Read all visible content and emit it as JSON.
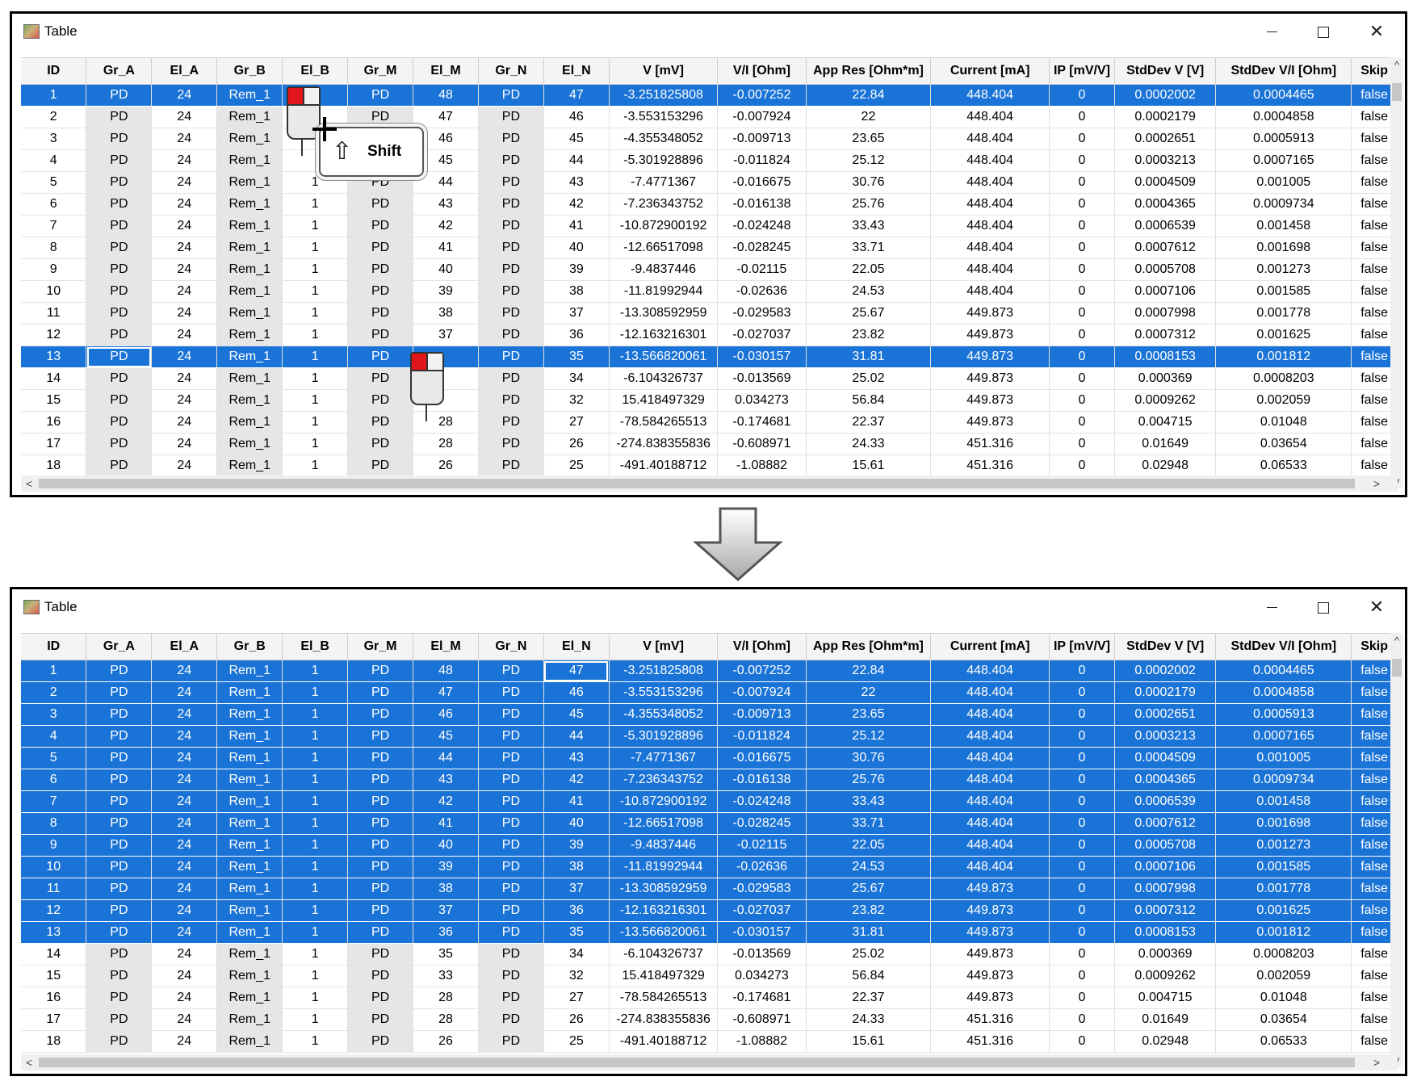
{
  "window_title": "Table",
  "window_controls": {
    "minimize": "—",
    "maximize": "□",
    "close": "✕"
  },
  "columns": [
    "ID",
    "Gr_A",
    "El_A",
    "Gr_B",
    "El_B",
    "Gr_M",
    "El_M",
    "Gr_N",
    "El_N",
    "V [mV]",
    "V/I [Ohm]",
    "App Res [Ohm*m]",
    "Current [mA]",
    "IP [mV/V]",
    "StdDev V [V]",
    "StdDev V/I [Ohm]",
    "Skip"
  ],
  "overlay": {
    "key_label": "Shift",
    "key_symbol": "⇧"
  },
  "scroll": {
    "up": "^",
    "down": "v",
    "left": "<",
    "right": ">"
  },
  "top_panel": {
    "selected_rows": [
      1,
      13
    ],
    "rows": [
      [
        "1",
        "PD",
        "24",
        "Rem_1",
        "",
        "PD",
        "48",
        "PD",
        "47",
        "-3.251825808",
        "-0.007252",
        "22.84",
        "448.404",
        "0",
        "0.0002002",
        "0.0004465",
        "false"
      ],
      [
        "2",
        "PD",
        "24",
        "Rem_1",
        "",
        "PD",
        "47",
        "PD",
        "46",
        "-3.553153296",
        "-0.007924",
        "22",
        "448.404",
        "0",
        "0.0002179",
        "0.0004858",
        "false"
      ],
      [
        "3",
        "PD",
        "24",
        "Rem_1",
        "",
        "PD",
        "46",
        "PD",
        "45",
        "-4.355348052",
        "-0.009713",
        "23.65",
        "448.404",
        "0",
        "0.0002651",
        "0.0005913",
        "false"
      ],
      [
        "4",
        "PD",
        "24",
        "Rem_1",
        "",
        "PD",
        "45",
        "PD",
        "44",
        "-5.301928896",
        "-0.011824",
        "25.12",
        "448.404",
        "0",
        "0.0003213",
        "0.0007165",
        "false"
      ],
      [
        "5",
        "PD",
        "24",
        "Rem_1",
        "1",
        "PD",
        "44",
        "PD",
        "43",
        "-7.4771367",
        "-0.016675",
        "30.76",
        "448.404",
        "0",
        "0.0004509",
        "0.001005",
        "false"
      ],
      [
        "6",
        "PD",
        "24",
        "Rem_1",
        "1",
        "PD",
        "43",
        "PD",
        "42",
        "-7.236343752",
        "-0.016138",
        "25.76",
        "448.404",
        "0",
        "0.0004365",
        "0.0009734",
        "false"
      ],
      [
        "7",
        "PD",
        "24",
        "Rem_1",
        "1",
        "PD",
        "42",
        "PD",
        "41",
        "-10.872900192",
        "-0.024248",
        "33.43",
        "448.404",
        "0",
        "0.0006539",
        "0.001458",
        "false"
      ],
      [
        "8",
        "PD",
        "24",
        "Rem_1",
        "1",
        "PD",
        "41",
        "PD",
        "40",
        "-12.66517098",
        "-0.028245",
        "33.71",
        "448.404",
        "0",
        "0.0007612",
        "0.001698",
        "false"
      ],
      [
        "9",
        "PD",
        "24",
        "Rem_1",
        "1",
        "PD",
        "40",
        "PD",
        "39",
        "-9.4837446",
        "-0.02115",
        "22.05",
        "448.404",
        "0",
        "0.0005708",
        "0.001273",
        "false"
      ],
      [
        "10",
        "PD",
        "24",
        "Rem_1",
        "1",
        "PD",
        "39",
        "PD",
        "38",
        "-11.81992944",
        "-0.02636",
        "24.53",
        "448.404",
        "0",
        "0.0007106",
        "0.001585",
        "false"
      ],
      [
        "11",
        "PD",
        "24",
        "Rem_1",
        "1",
        "PD",
        "38",
        "PD",
        "37",
        "-13.308592959",
        "-0.029583",
        "25.67",
        "449.873",
        "0",
        "0.0007998",
        "0.001778",
        "false"
      ],
      [
        "12",
        "PD",
        "24",
        "Rem_1",
        "1",
        "PD",
        "37",
        "PD",
        "36",
        "-12.163216301",
        "-0.027037",
        "23.82",
        "449.873",
        "0",
        "0.0007312",
        "0.001625",
        "false"
      ],
      [
        "13",
        "PD",
        "24",
        "Rem_1",
        "1",
        "PD",
        "",
        "PD",
        "35",
        "-13.566820061",
        "-0.030157",
        "31.81",
        "449.873",
        "0",
        "0.0008153",
        "0.001812",
        "false"
      ],
      [
        "14",
        "PD",
        "24",
        "Rem_1",
        "1",
        "PD",
        "",
        "PD",
        "34",
        "-6.104326737",
        "-0.013569",
        "25.02",
        "449.873",
        "0",
        "0.000369",
        "0.0008203",
        "false"
      ],
      [
        "15",
        "PD",
        "24",
        "Rem_1",
        "1",
        "PD",
        "",
        "PD",
        "32",
        "15.418497329",
        "0.034273",
        "56.84",
        "449.873",
        "0",
        "0.0009262",
        "0.002059",
        "false"
      ],
      [
        "16",
        "PD",
        "24",
        "Rem_1",
        "1",
        "PD",
        "28",
        "PD",
        "27",
        "-78.584265513",
        "-0.174681",
        "22.37",
        "449.873",
        "0",
        "0.004715",
        "0.01048",
        "false"
      ],
      [
        "17",
        "PD",
        "24",
        "Rem_1",
        "1",
        "PD",
        "28",
        "PD",
        "26",
        "-274.838355836",
        "-0.608971",
        "24.33",
        "451.316",
        "0",
        "0.01649",
        "0.03654",
        "false"
      ],
      [
        "18",
        "PD",
        "24",
        "Rem_1",
        "1",
        "PD",
        "26",
        "PD",
        "25",
        "-491.40188712",
        "-1.08882",
        "15.61",
        "451.316",
        "0",
        "0.02948",
        "0.06533",
        "false"
      ]
    ]
  },
  "bottom_panel": {
    "selected_rows": [
      1,
      2,
      3,
      4,
      5,
      6,
      7,
      8,
      9,
      10,
      11,
      12,
      13
    ],
    "rows": [
      [
        "1",
        "PD",
        "24",
        "Rem_1",
        "1",
        "PD",
        "48",
        "PD",
        "47",
        "-3.251825808",
        "-0.007252",
        "22.84",
        "448.404",
        "0",
        "0.0002002",
        "0.0004465",
        "false"
      ],
      [
        "2",
        "PD",
        "24",
        "Rem_1",
        "1",
        "PD",
        "47",
        "PD",
        "46",
        "-3.553153296",
        "-0.007924",
        "22",
        "448.404",
        "0",
        "0.0002179",
        "0.0004858",
        "false"
      ],
      [
        "3",
        "PD",
        "24",
        "Rem_1",
        "1",
        "PD",
        "46",
        "PD",
        "45",
        "-4.355348052",
        "-0.009713",
        "23.65",
        "448.404",
        "0",
        "0.0002651",
        "0.0005913",
        "false"
      ],
      [
        "4",
        "PD",
        "24",
        "Rem_1",
        "1",
        "PD",
        "45",
        "PD",
        "44",
        "-5.301928896",
        "-0.011824",
        "25.12",
        "448.404",
        "0",
        "0.0003213",
        "0.0007165",
        "false"
      ],
      [
        "5",
        "PD",
        "24",
        "Rem_1",
        "1",
        "PD",
        "44",
        "PD",
        "43",
        "-7.4771367",
        "-0.016675",
        "30.76",
        "448.404",
        "0",
        "0.0004509",
        "0.001005",
        "false"
      ],
      [
        "6",
        "PD",
        "24",
        "Rem_1",
        "1",
        "PD",
        "43",
        "PD",
        "42",
        "-7.236343752",
        "-0.016138",
        "25.76",
        "448.404",
        "0",
        "0.0004365",
        "0.0009734",
        "false"
      ],
      [
        "7",
        "PD",
        "24",
        "Rem_1",
        "1",
        "PD",
        "42",
        "PD",
        "41",
        "-10.872900192",
        "-0.024248",
        "33.43",
        "448.404",
        "0",
        "0.0006539",
        "0.001458",
        "false"
      ],
      [
        "8",
        "PD",
        "24",
        "Rem_1",
        "1",
        "PD",
        "41",
        "PD",
        "40",
        "-12.66517098",
        "-0.028245",
        "33.71",
        "448.404",
        "0",
        "0.0007612",
        "0.001698",
        "false"
      ],
      [
        "9",
        "PD",
        "24",
        "Rem_1",
        "1",
        "PD",
        "40",
        "PD",
        "39",
        "-9.4837446",
        "-0.02115",
        "22.05",
        "448.404",
        "0",
        "0.0005708",
        "0.001273",
        "false"
      ],
      [
        "10",
        "PD",
        "24",
        "Rem_1",
        "1",
        "PD",
        "39",
        "PD",
        "38",
        "-11.81992944",
        "-0.02636",
        "24.53",
        "448.404",
        "0",
        "0.0007106",
        "0.001585",
        "false"
      ],
      [
        "11",
        "PD",
        "24",
        "Rem_1",
        "1",
        "PD",
        "38",
        "PD",
        "37",
        "-13.308592959",
        "-0.029583",
        "25.67",
        "449.873",
        "0",
        "0.0007998",
        "0.001778",
        "false"
      ],
      [
        "12",
        "PD",
        "24",
        "Rem_1",
        "1",
        "PD",
        "37",
        "PD",
        "36",
        "-12.163216301",
        "-0.027037",
        "23.82",
        "449.873",
        "0",
        "0.0007312",
        "0.001625",
        "false"
      ],
      [
        "13",
        "PD",
        "24",
        "Rem_1",
        "1",
        "PD",
        "36",
        "PD",
        "35",
        "-13.566820061",
        "-0.030157",
        "31.81",
        "449.873",
        "0",
        "0.0008153",
        "0.001812",
        "false"
      ],
      [
        "14",
        "PD",
        "24",
        "Rem_1",
        "1",
        "PD",
        "35",
        "PD",
        "34",
        "-6.104326737",
        "-0.013569",
        "25.02",
        "449.873",
        "0",
        "0.000369",
        "0.0008203",
        "false"
      ],
      [
        "15",
        "PD",
        "24",
        "Rem_1",
        "1",
        "PD",
        "33",
        "PD",
        "32",
        "15.418497329",
        "0.034273",
        "56.84",
        "449.873",
        "0",
        "0.0009262",
        "0.002059",
        "false"
      ],
      [
        "16",
        "PD",
        "24",
        "Rem_1",
        "1",
        "PD",
        "28",
        "PD",
        "27",
        "-78.584265513",
        "-0.174681",
        "22.37",
        "449.873",
        "0",
        "0.004715",
        "0.01048",
        "false"
      ],
      [
        "17",
        "PD",
        "24",
        "Rem_1",
        "1",
        "PD",
        "28",
        "PD",
        "26",
        "-274.838355836",
        "-0.608971",
        "24.33",
        "451.316",
        "0",
        "0.01649",
        "0.03654",
        "false"
      ],
      [
        "18",
        "PD",
        "24",
        "Rem_1",
        "1",
        "PD",
        "26",
        "PD",
        "25",
        "-491.40188712",
        "-1.08882",
        "15.61",
        "451.316",
        "0",
        "0.02948",
        "0.06533",
        "false"
      ]
    ]
  },
  "colors": {
    "selection": "#1a73d6",
    "gray_column": "#e6e6e6"
  }
}
